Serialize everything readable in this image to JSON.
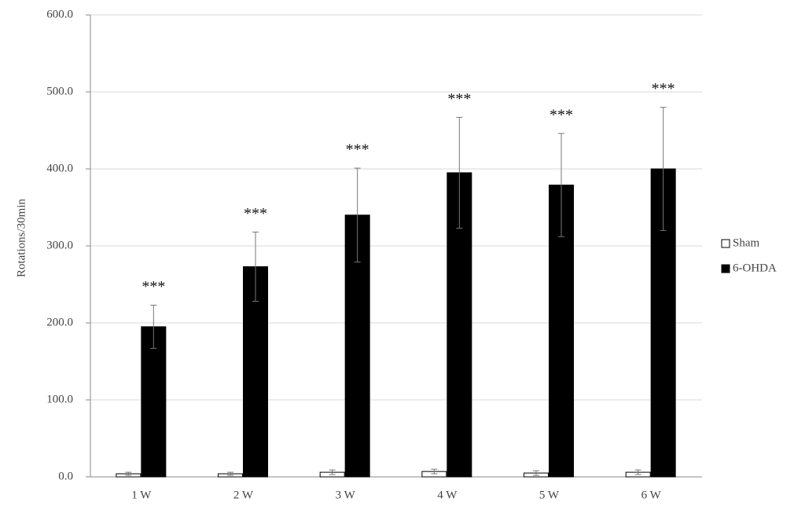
{
  "chart_data": {
    "type": "bar",
    "y_label": "Rotations/30min",
    "categories": [
      "1 W",
      "2 W",
      "3 W",
      "4 W",
      "5 W",
      "6 W"
    ],
    "series": [
      {
        "name": "Sham",
        "color": "#ffffff",
        "values": [
          4,
          4,
          6,
          7,
          5,
          6
        ],
        "errors": [
          2,
          2,
          3,
          3,
          3,
          3
        ]
      },
      {
        "name": "6-OHDA",
        "color": "#000000",
        "values": [
          195,
          273,
          340,
          395,
          379,
          400
        ],
        "errors": [
          28,
          45,
          61,
          72,
          67,
          80
        ]
      }
    ],
    "annotations": [
      "***",
      "***",
      "***",
      "***",
      "***",
      "***"
    ],
    "ylim": [
      0,
      600
    ],
    "yticks": [
      {
        "value": 0,
        "label": "0.0"
      },
      {
        "value": 100,
        "label": "100.0"
      },
      {
        "value": 200,
        "label": "200.0"
      },
      {
        "value": 300,
        "label": "300.0"
      },
      {
        "value": 400,
        "label": "400.0"
      },
      {
        "value": 500,
        "label": "500.0"
      },
      {
        "value": 600,
        "label": "600.0"
      }
    ],
    "grid": true,
    "legend": "right"
  }
}
